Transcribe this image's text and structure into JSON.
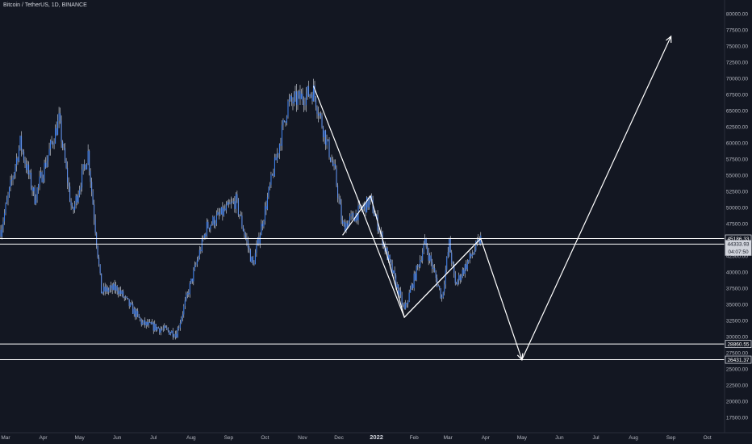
{
  "header": {
    "title": "Bitcoin / TetherUS, 1D, BINANCE"
  },
  "colors": {
    "background": "#131722",
    "candle": "#3e7ee8",
    "wick": "#d8dde6",
    "drawing": "#ffffff",
    "axis_text": "#b2b5be"
  },
  "chart_data": {
    "type": "candlestick",
    "title": "Bitcoin / TetherUS, 1D, BINANCE",
    "ylim": [
      16000,
      81500
    ],
    "y_ticks": [
      17500,
      20000,
      22500,
      25000,
      27500,
      30000,
      32500,
      35000,
      37500,
      40000,
      42500,
      45000,
      47500,
      50000,
      52500,
      55000,
      57500,
      60000,
      62500,
      65000,
      67500,
      70000,
      72500,
      75000,
      77500,
      80000
    ],
    "y_tick_labels": [
      "17500.00",
      "20000.00",
      "22500.00",
      "25000.00",
      "27500.00",
      "30000.00",
      "32500.00",
      "35000.00",
      "37500.00",
      "40000.00",
      "42500.00",
      "45000.00",
      "47500.00",
      "50000.00",
      "52500.00",
      "55000.00",
      "57500.00",
      "60000.00",
      "62500.00",
      "65000.00",
      "67500.00",
      "70000.00",
      "72500.00",
      "75000.00",
      "77500.00",
      "80000.00"
    ],
    "x_ticks": [
      {
        "label": "Mar",
        "date": "2021-03-01",
        "bold": false
      },
      {
        "label": "Apr",
        "date": "2021-04-01",
        "bold": false
      },
      {
        "label": "May",
        "date": "2021-05-01",
        "bold": false
      },
      {
        "label": "Jun",
        "date": "2021-06-01",
        "bold": false
      },
      {
        "label": "Jul",
        "date": "2021-07-01",
        "bold": false
      },
      {
        "label": "Aug",
        "date": "2021-08-01",
        "bold": false
      },
      {
        "label": "Sep",
        "date": "2021-09-01",
        "bold": false
      },
      {
        "label": "Oct",
        "date": "2021-10-01",
        "bold": false
      },
      {
        "label": "Nov",
        "date": "2021-11-01",
        "bold": false
      },
      {
        "label": "Dec",
        "date": "2021-12-01",
        "bold": false
      },
      {
        "label": "2022",
        "date": "2022-01-01",
        "bold": true
      },
      {
        "label": "Feb",
        "date": "2022-02-01",
        "bold": false
      },
      {
        "label": "Mar",
        "date": "2022-03-01",
        "bold": false
      },
      {
        "label": "Apr",
        "date": "2022-04-01",
        "bold": false
      },
      {
        "label": "May",
        "date": "2022-05-01",
        "bold": false
      },
      {
        "label": "Jun",
        "date": "2022-06-01",
        "bold": false
      },
      {
        "label": "Jul",
        "date": "2022-07-01",
        "bold": false
      },
      {
        "label": "Aug",
        "date": "2022-08-01",
        "bold": false
      },
      {
        "label": "Sep",
        "date": "2022-09-01",
        "bold": false
      },
      {
        "label": "Oct",
        "date": "2022-10-01",
        "bold": false
      }
    ],
    "price_path": [
      {
        "date": "2021-02-25",
        "price": 46500
      },
      {
        "date": "2021-03-13",
        "price": 60000
      },
      {
        "date": "2021-03-25",
        "price": 51500
      },
      {
        "date": "2021-04-14",
        "price": 63500
      },
      {
        "date": "2021-04-25",
        "price": 49000
      },
      {
        "date": "2021-05-08",
        "price": 58500
      },
      {
        "date": "2021-05-19",
        "price": 37000
      },
      {
        "date": "2021-06-01",
        "price": 37500
      },
      {
        "date": "2021-06-22",
        "price": 32000
      },
      {
        "date": "2021-07-20",
        "price": 30500
      },
      {
        "date": "2021-08-14",
        "price": 47000
      },
      {
        "date": "2021-09-07",
        "price": 51000
      },
      {
        "date": "2021-09-21",
        "price": 41000
      },
      {
        "date": "2021-10-20",
        "price": 66000
      },
      {
        "date": "2021-11-10",
        "price": 68000
      },
      {
        "date": "2021-11-28",
        "price": 55000
      },
      {
        "date": "2021-12-04",
        "price": 47000
      },
      {
        "date": "2021-12-27",
        "price": 51000
      },
      {
        "date": "2022-01-24",
        "price": 34000
      },
      {
        "date": "2022-02-10",
        "price": 44500
      },
      {
        "date": "2022-02-24",
        "price": 36000
      },
      {
        "date": "2022-03-02",
        "price": 44500
      },
      {
        "date": "2022-03-07",
        "price": 38000
      },
      {
        "date": "2022-03-28",
        "price": 45186
      }
    ],
    "horizontal_levels": [
      {
        "price": 45186.33,
        "label": "45186.33",
        "style": "outline"
      },
      {
        "price": 44333.93,
        "label": "44333.93",
        "style": "filled"
      },
      {
        "price": 28860.55,
        "label": "28860.55",
        "style": "outline"
      },
      {
        "price": 26431.37,
        "label": "26431.37",
        "style": "outline"
      }
    ],
    "countdown_label": "04:07:50",
    "drawn_path": [
      {
        "date": "2021-11-10",
        "price": 68800
      },
      {
        "date": "2022-01-24",
        "price": 33000
      },
      {
        "date": "2022-03-28",
        "price": 45186
      },
      {
        "date": "2022-05-01",
        "price": 26431
      },
      {
        "date": "2022-09-01",
        "price": 76500
      }
    ],
    "drawn_channel": [
      {
        "date": "2021-12-04",
        "price": 45700
      },
      {
        "date": "2021-12-27",
        "price": 51800
      },
      {
        "date": "2022-01-24",
        "price": 33000
      },
      {
        "date": "2022-03-28",
        "price": 45186
      }
    ]
  }
}
